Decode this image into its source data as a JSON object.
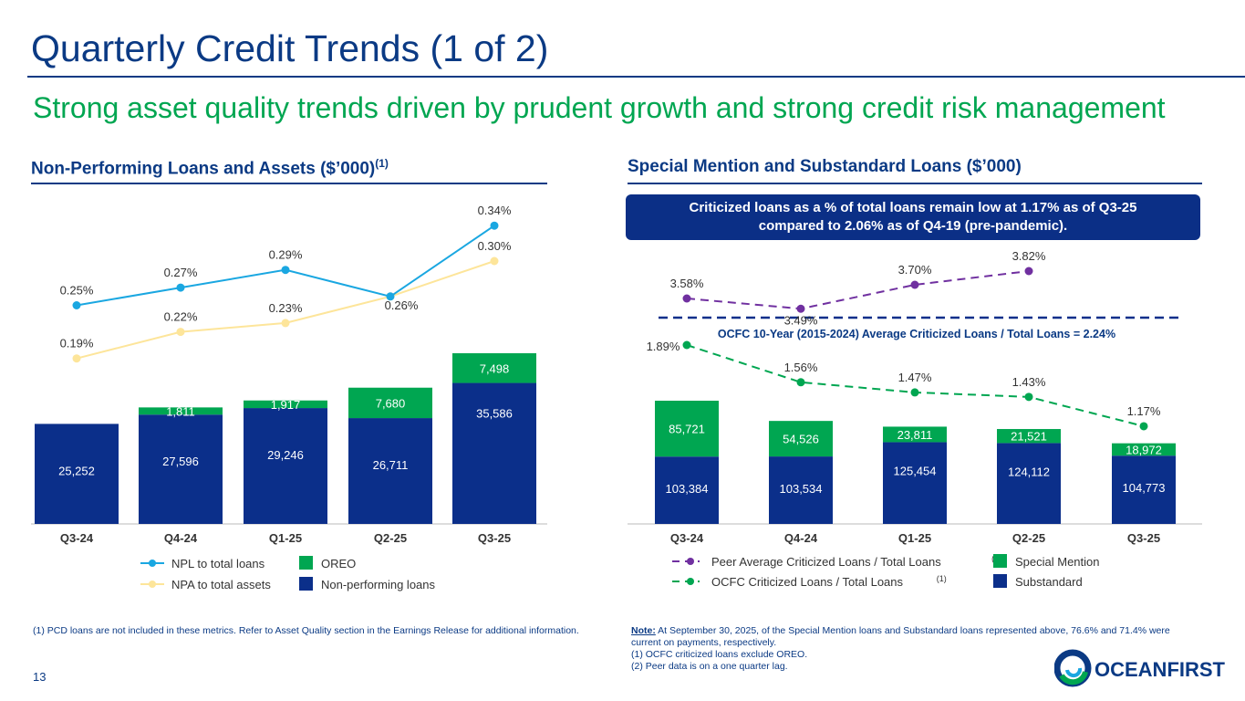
{
  "title": "Quarterly Credit Trends (1 of 2)",
  "subtitle": "Strong asset quality trends driven by prudent growth and strong credit risk management",
  "left_section": {
    "title": "Non-Performing Loans and Assets ($’000)",
    "sup": "(1)"
  },
  "right_section": {
    "title": "Special Mention and Substandard Loans ($’000)"
  },
  "callout": {
    "line1": "Criticized loans as a % of total loans remain low at 1.17% as of Q3-25",
    "line2": "compared to 2.06% as of Q4-19 (pre-pandemic)."
  },
  "colors": {
    "navy": "#0b2f8a",
    "green": "#00a651",
    "npl": "#1aa7e1",
    "npa": "#fde59a",
    "peer": "#7030a0",
    "ocfc": "#00a651"
  },
  "chart_data": [
    {
      "type": "bar",
      "stacked": true,
      "categories": [
        "Q3-24",
        "Q4-24",
        "Q1-25",
        "Q2-25",
        "Q3-25"
      ],
      "series": [
        {
          "name": "Non-performing loans",
          "values": [
            25252,
            27596,
            29246,
            26711,
            35586
          ],
          "labels": [
            "25,252",
            "27,596",
            "29,246",
            "26,711",
            "35,586"
          ]
        },
        {
          "name": "OREO",
          "values": [
            0,
            1811,
            1917,
            7680,
            7498
          ],
          "labels": [
            "",
            "1,811",
            "1,917",
            "7,680",
            "7,498"
          ]
        }
      ],
      "lines": [
        {
          "name": "NPL to total loans",
          "values": [
            0.25,
            0.27,
            0.29,
            0.26,
            0.34
          ],
          "labels": [
            "0.25%",
            "0.27%",
            "0.29%",
            "0.26%",
            "0.34%"
          ]
        },
        {
          "name": "NPA to total assets",
          "values": [
            0.19,
            0.22,
            0.23,
            0.26,
            0.3
          ],
          "labels": [
            "0.19%",
            "0.22%",
            "0.23%",
            "",
            "0.30%"
          ]
        }
      ],
      "legend": "bottom"
    },
    {
      "type": "bar",
      "stacked": true,
      "categories": [
        "Q3-24",
        "Q4-24",
        "Q1-25",
        "Q2-25",
        "Q3-25"
      ],
      "series": [
        {
          "name": "Substandard",
          "values": [
            103384,
            103534,
            125454,
            124112,
            104773
          ],
          "labels": [
            "103,384",
            "103,534",
            "125,454",
            "124,112",
            "104,773"
          ]
        },
        {
          "name": "Special Mention",
          "values": [
            85721,
            54526,
            23811,
            21521,
            18972
          ],
          "labels": [
            "85,721",
            "54,526",
            "23,811",
            "21,521",
            "18,972"
          ]
        }
      ],
      "lines": [
        {
          "name": "Peer Average Criticized Loans / Total Loans",
          "sup": "(2)",
          "values": [
            3.58,
            3.49,
            3.7,
            3.82,
            null
          ],
          "labels": [
            "3.58%",
            "3.49%",
            "3.70%",
            "3.82%",
            ""
          ]
        },
        {
          "name": "OCFC Criticized Loans / Total Loans",
          "sup": "(1)",
          "values": [
            1.89,
            1.56,
            1.47,
            1.43,
            1.17
          ],
          "labels": [
            "1.89%",
            "1.56%",
            "1.47%",
            "1.43%",
            "1.17%"
          ]
        }
      ],
      "reference_line": {
        "label": "OCFC 10-Year (2015-2024) Average Criticized Loans / Total Loans = 2.24%",
        "value": 2.24
      },
      "legend": "bottom"
    }
  ],
  "footnotes_left": "(1)  PCD loans are not included in these metrics. Refer to Asset Quality section in the Earnings Release for additional information.",
  "note": {
    "label": "Note:",
    "text": " At September 30, 2025, of the Special Mention loans and Substandard loans represented above, 76.6% and 71.4% were current on payments, respectively.",
    "f1": "(1)  OCFC criticized loans exclude OREO.",
    "f2": "(2)  Peer data is on a one quarter lag."
  },
  "page_number": "13",
  "logo_text": "OCEANFIRST"
}
